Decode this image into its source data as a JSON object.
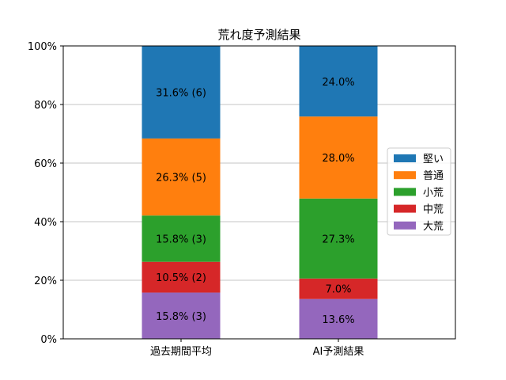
{
  "chart_data": {
    "type": "bar",
    "stacked": true,
    "title": "荒れ度予測結果",
    "categories": [
      "過去期間平均",
      "AI予測結果"
    ],
    "ylim": [
      0,
      100
    ],
    "yticks": [
      "0%",
      "20%",
      "40%",
      "60%",
      "80%",
      "100%"
    ],
    "ytick_values": [
      0,
      20,
      40,
      60,
      80,
      100
    ],
    "grid": "horizontal",
    "legend_position": "right",
    "series": [
      {
        "name": "大荒",
        "color": "#9467bd",
        "values": [
          15.8,
          13.6
        ],
        "labels": [
          "15.8% (3)",
          "13.6%"
        ]
      },
      {
        "name": "中荒",
        "color": "#d62728",
        "values": [
          10.5,
          7.0
        ],
        "labels": [
          "10.5% (2)",
          "7.0%"
        ]
      },
      {
        "name": "小荒",
        "color": "#2ca02c",
        "values": [
          15.8,
          27.3
        ],
        "labels": [
          "15.8% (3)",
          "27.3%"
        ]
      },
      {
        "name": "普通",
        "color": "#ff7f0e",
        "values": [
          26.3,
          28.0
        ],
        "labels": [
          "26.3% (5)",
          "28.0%"
        ]
      },
      {
        "name": "堅い",
        "color": "#1f77b4",
        "values": [
          31.6,
          24.0
        ],
        "labels": [
          "31.6% (6)",
          "24.0%"
        ]
      }
    ],
    "legend_order": [
      "堅い",
      "普通",
      "小荒",
      "中荒",
      "大荒"
    ]
  }
}
